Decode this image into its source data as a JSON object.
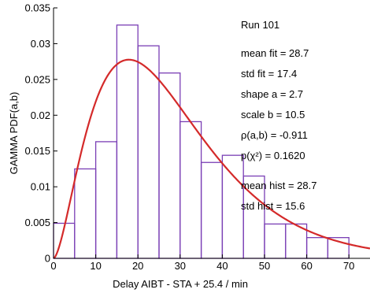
{
  "chart_data": {
    "type": "histogram-with-fit",
    "xlabel": "Delay AIBT - STA + 25.4 / min",
    "ylabel": "GAMMA PDF(a,b)",
    "xlim": [
      0,
      75
    ],
    "ylim": [
      0,
      0.035
    ],
    "x_ticks": [
      0,
      10,
      20,
      30,
      40,
      50,
      60,
      70
    ],
    "x_tick_labels": [
      "0",
      "10",
      "20",
      "30",
      "40",
      "50",
      "60",
      "70"
    ],
    "y_ticks": [
      0,
      0.005,
      0.01,
      0.015,
      0.02,
      0.025,
      0.03,
      0.035
    ],
    "y_tick_labels": [
      "0",
      "0.005",
      "0.01",
      "0.015",
      "0.02",
      "0.025",
      "0.03",
      "0.035"
    ],
    "grid": false,
    "bin_width": 5,
    "bins": [
      {
        "x0": 0,
        "x1": 5,
        "value": 0.0049
      },
      {
        "x0": 5,
        "x1": 10,
        "value": 0.0125
      },
      {
        "x0": 10,
        "x1": 15,
        "value": 0.0163
      },
      {
        "x0": 15,
        "x1": 20,
        "value": 0.0326
      },
      {
        "x0": 20,
        "x1": 25,
        "value": 0.0297
      },
      {
        "x0": 25,
        "x1": 30,
        "value": 0.0259
      },
      {
        "x0": 30,
        "x1": 35,
        "value": 0.0191
      },
      {
        "x0": 35,
        "x1": 40,
        "value": 0.0134
      },
      {
        "x0": 40,
        "x1": 45,
        "value": 0.0144
      },
      {
        "x0": 45,
        "x1": 50,
        "value": 0.0115
      },
      {
        "x0": 50,
        "x1": 55,
        "value": 0.0048
      },
      {
        "x0": 55,
        "x1": 60,
        "value": 0.0048
      },
      {
        "x0": 60,
        "x1": 65,
        "value": 0.0029
      },
      {
        "x0": 65,
        "x1": 70,
        "value": 0.0029
      }
    ],
    "fit": {
      "shape_a": 2.7,
      "scale_b": 10.5
    },
    "colors": {
      "bars": "#7a3fb5",
      "fit": "#d42a2a",
      "axes": "#000000"
    }
  },
  "annotations": [
    "Run 101",
    "mean fit = 28.7",
    "std fit = 17.4",
    "shape a = 2.7",
    "scale b = 10.5",
    "ρ(a,b) = -0.911",
    "p(χ²) = 0.1620",
    "mean hist = 28.7",
    "std hist = 15.6"
  ]
}
